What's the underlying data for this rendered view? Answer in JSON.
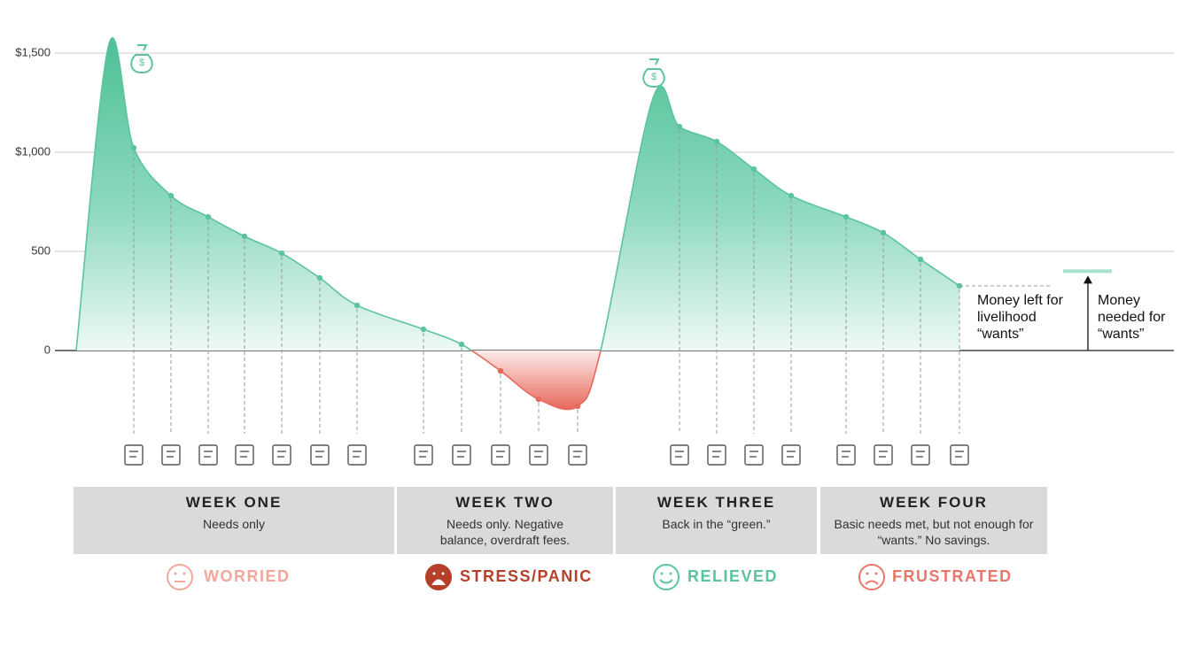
{
  "chart_data": {
    "type": "area",
    "values": [
      0,
      1545,
      1022,
      781,
      674,
      576,
      491,
      366,
      228,
      107,
      31,
      -103,
      -246,
      -281,
      0,
      1272,
      1129,
      1054,
      915,
      781,
      674,
      594,
      460,
      326
    ],
    "ylim": [
      -330,
      1560
    ],
    "yticks": [
      0,
      500,
      {
        "value": 1000,
        "label": "$1,000"
      },
      {
        "value": 1500,
        "label": "$1,500"
      }
    ],
    "grid": true,
    "color": "#5cc49d",
    "negative_color": "#e8695c",
    "annotations": {
      "money_left": "Money left for livelihood “wants”",
      "money_needed": "Money needed for “wants”"
    },
    "wants_needed": 400
  },
  "weeks": [
    {
      "title": "WEEK ONE",
      "description": "Needs only",
      "mood": "WORRIED",
      "mood_color": "#f2a79d"
    },
    {
      "title": "WEEK TWO",
      "description": "Needs only. Negative balance, overdraft fees.",
      "mood": "STRESS/PANIC",
      "mood_color": "#b5402a"
    },
    {
      "title": "WEEK THREE",
      "description": "Back in the “green.”",
      "mood": "RELIEVED",
      "mood_color": "#5cc49d"
    },
    {
      "title": "WEEK FOUR",
      "description": "Basic needs met, but not enough for “wants.” No savings.",
      "mood": "FRUSTRATED",
      "mood_color": "#e8766a"
    }
  ]
}
